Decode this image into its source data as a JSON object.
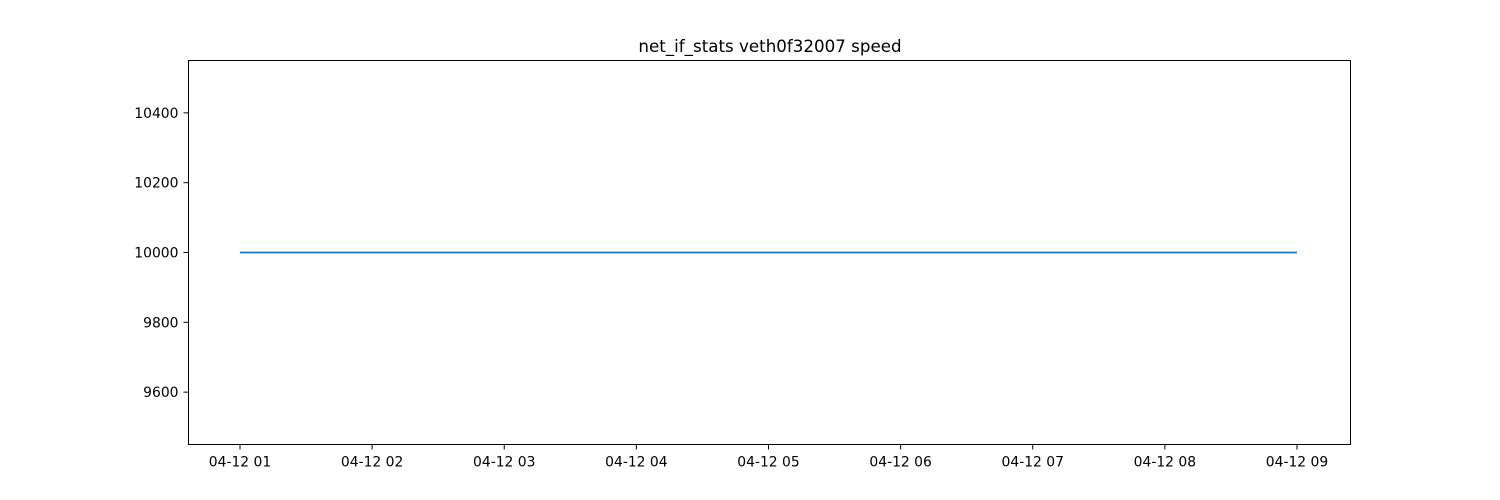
{
  "chart_data": {
    "type": "line",
    "title": "net_if_stats veth0f32007 speed",
    "xlabel": "",
    "ylabel": "",
    "x": [
      "04-12 01:00",
      "04-12 02:00",
      "04-12 03:00",
      "04-12 04:00",
      "04-12 05:00",
      "04-12 06:00",
      "04-12 07:00",
      "04-12 08:00",
      "04-12 09:00"
    ],
    "series": [
      {
        "values": [
          10000,
          10000,
          10000,
          10000,
          10000,
          10000,
          10000,
          10000,
          10000
        ],
        "color": "#1f77b4"
      }
    ],
    "xticks": [
      "04-12 01",
      "04-12 02",
      "04-12 03",
      "04-12 04",
      "04-12 05",
      "04-12 06",
      "04-12 07",
      "04-12 08",
      "04-12 09"
    ],
    "yticks": [
      9600,
      9800,
      10000,
      10200,
      10400
    ],
    "ylim": [
      9450,
      10550
    ],
    "grid": false,
    "legend": "none"
  }
}
